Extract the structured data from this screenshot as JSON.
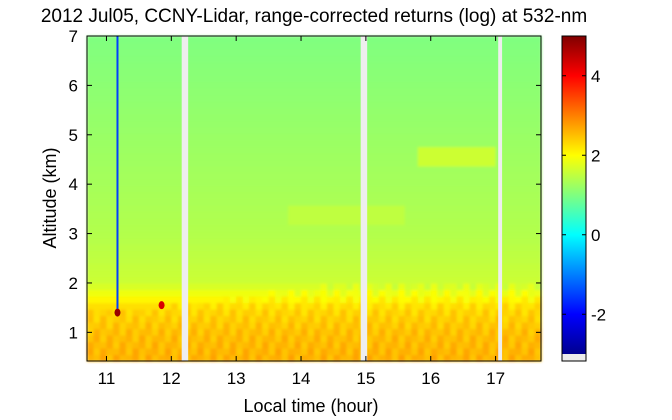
{
  "chart_data": {
    "type": "heatmap",
    "title": "2012 Jul05, CCNY-Lidar, range-corrected returns (log) at 532-nm",
    "xlabel": "Local time (hour)",
    "ylabel": "Altitude (km)",
    "xlim": [
      10.7,
      17.7
    ],
    "ylim": [
      0.42,
      7.0
    ],
    "xticks": [
      11,
      12,
      13,
      14,
      15,
      16,
      17
    ],
    "yticks": [
      1,
      2,
      3,
      4,
      5,
      6,
      7
    ],
    "colorbar": {
      "range": [
        -3.0,
        5.0
      ],
      "ticks": [
        -2,
        0,
        2,
        4
      ],
      "colormap": "jet"
    },
    "data_gaps_hours": [
      [
        12.16,
        12.26
      ],
      [
        14.92,
        15.02
      ],
      [
        17.04,
        17.1
      ]
    ],
    "boundary_layer_top_km": [
      [
        10.7,
        1.42
      ],
      [
        11.0,
        1.45
      ],
      [
        11.5,
        1.5
      ],
      [
        12.0,
        1.55
      ],
      [
        12.5,
        1.62
      ],
      [
        13.0,
        1.7
      ],
      [
        13.5,
        1.8
      ],
      [
        14.0,
        1.9
      ],
      [
        14.5,
        1.95
      ],
      [
        15.0,
        2.0
      ],
      [
        16.0,
        2.0
      ],
      [
        17.0,
        1.98
      ],
      [
        17.7,
        2.0
      ]
    ],
    "levels_by_altitude": [
      {
        "altitude_km": 0.5,
        "value": 2.6
      },
      {
        "altitude_km": 1.0,
        "value": 2.5
      },
      {
        "altitude_km": 1.5,
        "value": 2.3
      },
      {
        "altitude_km": 2.0,
        "value": 1.6
      },
      {
        "altitude_km": 3.0,
        "value": 1.4
      },
      {
        "altitude_km": 4.0,
        "value": 1.3
      },
      {
        "altitude_km": 5.0,
        "value": 1.2
      },
      {
        "altitude_km": 7.0,
        "value": 1.0
      }
    ],
    "features": [
      {
        "kind": "streak",
        "time_hour": 11.17,
        "altitude_km": [
          1.45,
          7.0
        ],
        "value": -1.5
      },
      {
        "kind": "spot",
        "time_hour": 11.17,
        "altitude_km": 1.4,
        "value": 4.8
      },
      {
        "kind": "spot",
        "time_hour": 11.85,
        "altitude_km": 1.55,
        "value": 4.3
      },
      {
        "kind": "layer",
        "time_hour": [
          13.8,
          15.6
        ],
        "altitude_km": 3.35,
        "value": 1.5
      },
      {
        "kind": "layer",
        "time_hour": [
          15.8,
          17.0
        ],
        "altitude_km": 4.6,
        "value": 1.6
      }
    ]
  }
}
